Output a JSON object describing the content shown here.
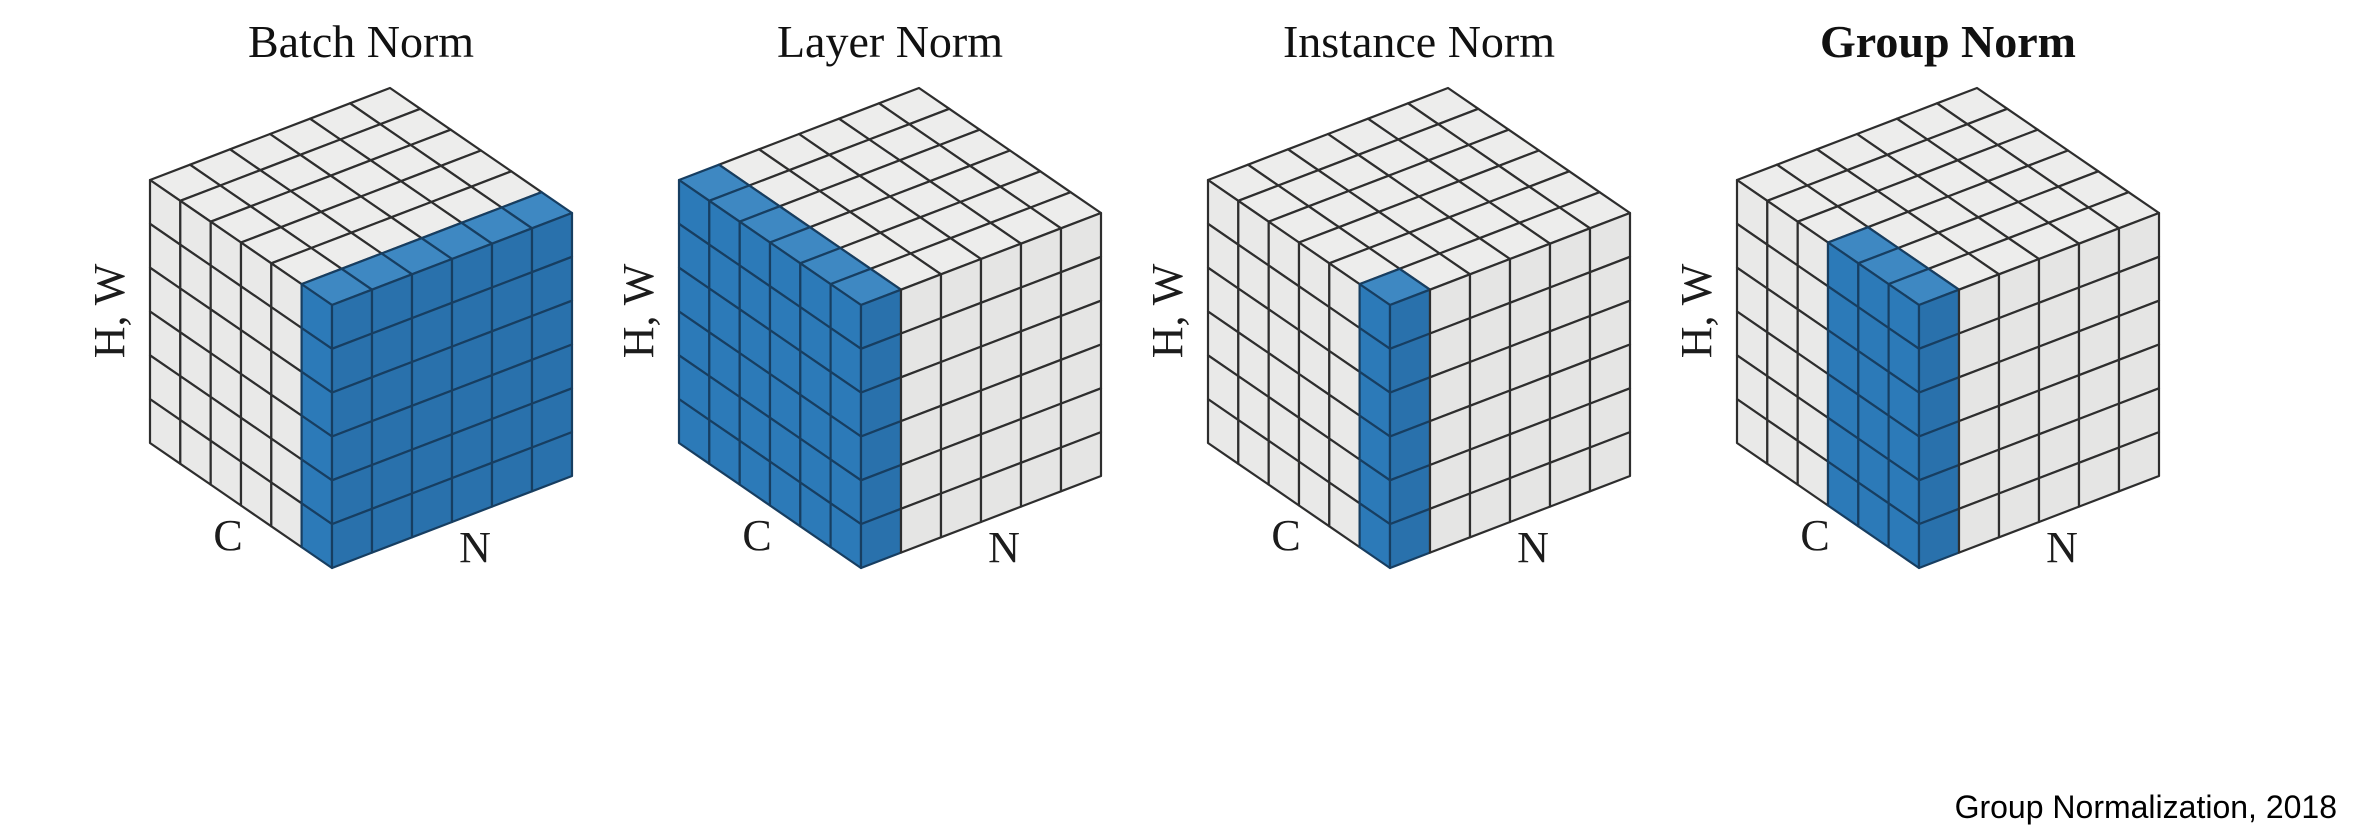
{
  "figure": {
    "caption": "Group Normalization, 2018",
    "axis_labels": {
      "vertical": "H, W",
      "front_bottom": "C",
      "side_bottom": "N"
    },
    "dims": {
      "C": 6,
      "N": 6,
      "HW": 6
    },
    "colors": {
      "background": "#ffffff",
      "text": "#111111",
      "cell_top": "#ededec",
      "cell_front": "#e9e9e8",
      "cell_side": "#e5e5e4",
      "cell_stroke": "#2e2e2e",
      "highlight_top": "#3e88c2",
      "highlight_front": "#2c7ab8",
      "highlight_side": "#2971ac",
      "highlight_stroke": "#173e61"
    },
    "cubes": [
      {
        "id": "batch-norm",
        "title": "Batch Norm",
        "title_bold": false,
        "c_set": [
          5
        ],
        "n_set": [
          0,
          1,
          2,
          3,
          4,
          5
        ]
      },
      {
        "id": "layer-norm",
        "title": "Layer Norm",
        "title_bold": false,
        "c_set": [
          0,
          1,
          2,
          3,
          4,
          5
        ],
        "n_set": [
          0
        ]
      },
      {
        "id": "instance-norm",
        "title": "Instance Norm",
        "title_bold": false,
        "c_set": [
          5
        ],
        "n_set": [
          0
        ]
      },
      {
        "id": "group-norm",
        "title": "Group Norm",
        "title_bold": true,
        "c_set": [
          3,
          4,
          5
        ],
        "n_set": [
          0
        ]
      }
    ]
  }
}
